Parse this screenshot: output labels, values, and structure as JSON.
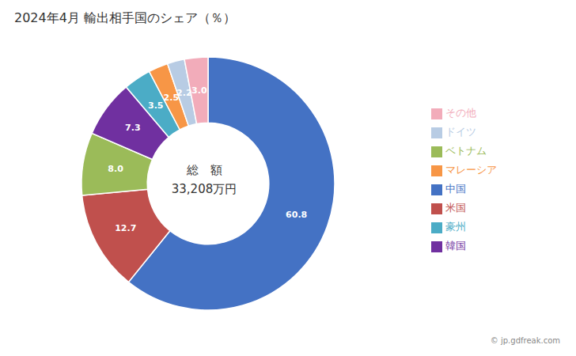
{
  "chart_data": {
    "type": "pie",
    "title": "2024年4月 輸出相手国のシェア（％）",
    "categories": [
      "中国",
      "米国",
      "ベトナム",
      "韓国",
      "豪州",
      "マレーシア",
      "ドイツ",
      "その他"
    ],
    "values": [
      60.8,
      12.7,
      8.0,
      7.3,
      3.5,
      2.5,
      2.2,
      3.0
    ],
    "value_labels": [
      "60.8",
      "12.7",
      "8.0",
      "7.3",
      "3.5",
      "2.5",
      "2.2",
      "3.0"
    ],
    "colors": [
      "#4472C4",
      "#C0504D",
      "#9BBB59",
      "#7030A0",
      "#4BACC6",
      "#F79646",
      "#B8CCE4",
      "#F2ACBA"
    ],
    "data_labels": true,
    "legend": "right",
    "annotations": [
      "総　額",
      "33,208万円",
      "© jp.gdfreak.com"
    ]
  }
}
